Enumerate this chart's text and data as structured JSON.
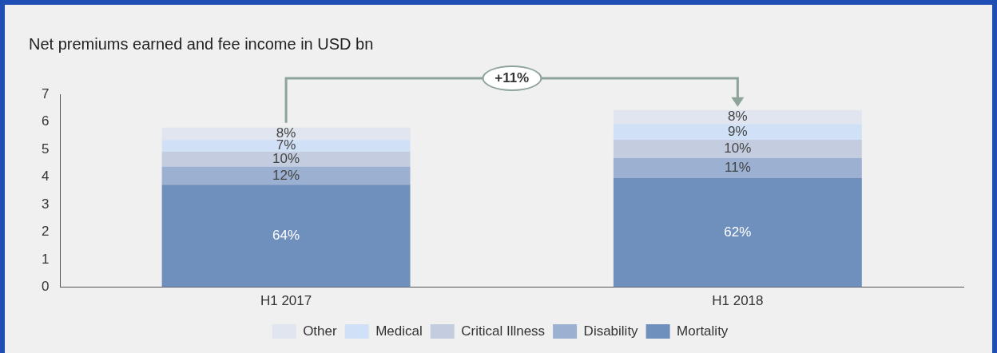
{
  "chart_data": {
    "type": "bar",
    "title": "Net premiums earned and fee income in USD bn",
    "categories": [
      "H1 2017",
      "H1 2018"
    ],
    "stacked": true,
    "series": [
      {
        "name": "Mortality",
        "color": "#6f8fbd",
        "values": [
          3.72,
          3.96
        ]
      },
      {
        "name": "Disability",
        "color": "#9cb0d1",
        "values": [
          0.66,
          0.72
        ]
      },
      {
        "name": "Critical Illness",
        "color": "#c4cde0",
        "values": [
          0.54,
          0.67
        ]
      },
      {
        "name": "Medical",
        "color": "#cfe0f7",
        "values": [
          0.42,
          0.57
        ]
      },
      {
        "name": "Other",
        "color": "#e0e5ef",
        "values": [
          0.45,
          0.51
        ]
      }
    ],
    "ylim": [
      0,
      7
    ],
    "yticks": [
      0,
      1,
      2,
      3,
      4,
      5,
      6,
      7
    ],
    "grid": false,
    "legend": "bottom",
    "annotations": [
      "+11%",
      "64%",
      "12%",
      "10%",
      "7%",
      "8%",
      "62%",
      "11%",
      "10%",
      "9%",
      "8%"
    ]
  }
}
